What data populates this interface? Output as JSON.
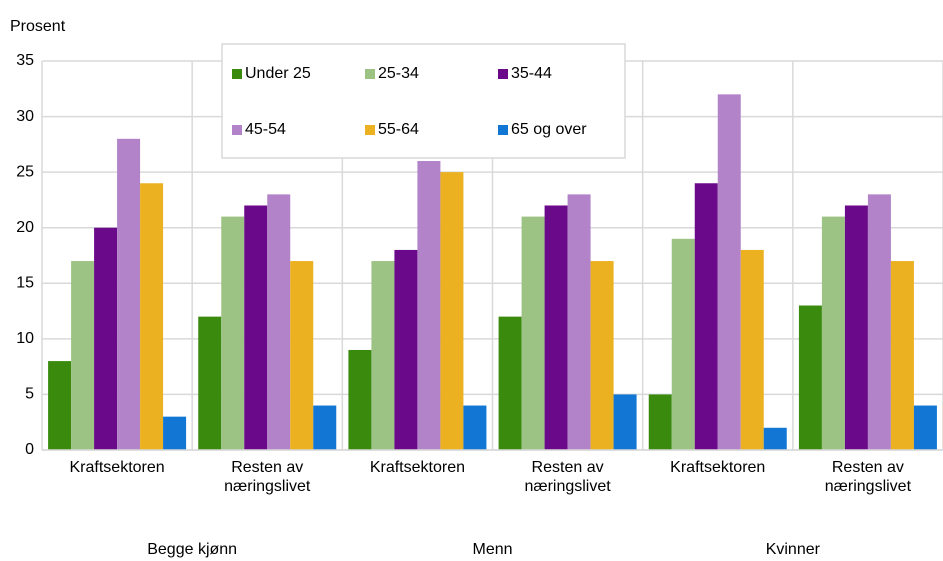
{
  "chart_data": {
    "type": "bar",
    "y_label": "Prosent",
    "categories": [
      "Kraftsektoren",
      "Resten av næringslivet",
      "Kraftsektoren",
      "Resten av næringslivet",
      "Kraftsektoren",
      "Resten av næringslivet"
    ],
    "groups": [
      "Begge kjønn",
      "Menn",
      "Kvinner"
    ],
    "series": [
      {
        "name": "Under 25",
        "color": "#3a8a0e",
        "values": [
          8,
          12,
          9,
          12,
          5,
          13
        ]
      },
      {
        "name": "25-34",
        "color": "#9dc384",
        "values": [
          17,
          21,
          17,
          21,
          19,
          21
        ]
      },
      {
        "name": "35-44",
        "color": "#6a0a8a",
        "values": [
          20,
          22,
          18,
          22,
          24,
          22
        ]
      },
      {
        "name": "45-54",
        "color": "#b383c9",
        "values": [
          28,
          23,
          26,
          23,
          32,
          23
        ]
      },
      {
        "name": "55-64",
        "color": "#ebb121",
        "values": [
          24,
          17,
          25,
          17,
          18,
          17
        ]
      },
      {
        "name": "65 og over",
        "color": "#1176d4",
        "values": [
          3,
          4,
          4,
          5,
          2,
          4
        ]
      }
    ],
    "ylim": [
      0,
      35
    ],
    "yticks": [
      0,
      5,
      10,
      15,
      20,
      25,
      30,
      35
    ],
    "grid": true,
    "legend": "top"
  }
}
